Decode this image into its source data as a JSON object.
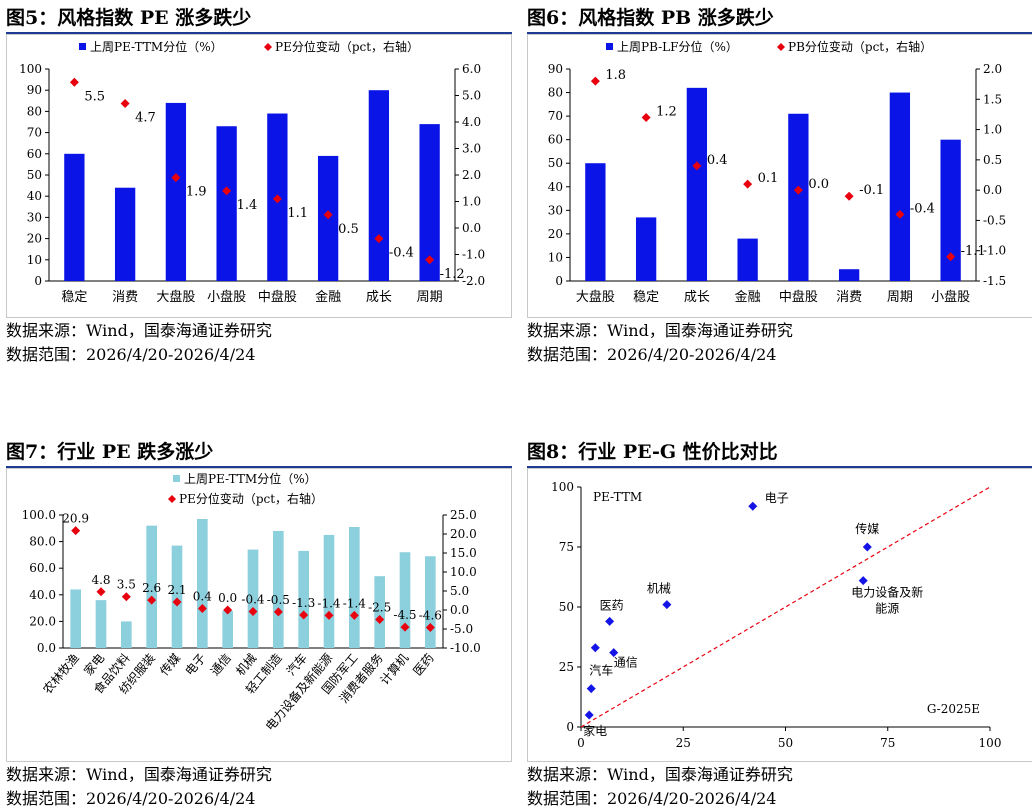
{
  "colors": {
    "bar_blue": "#0a14e6",
    "bar_light": "#8ccfdd",
    "marker_red": "#e8000f",
    "dashed_red": "#e8000f",
    "diamond_blue": "#1414e6"
  },
  "source_label": "数据来源：Wind，国泰海通证券研究",
  "range_label": "数据范围：2026/4/20-2026/4/24",
  "chart_data": [
    {
      "id": "fig5",
      "type": "bar",
      "title": "图5：风格指数 PE 涨多跌少",
      "categories": [
        "稳定",
        "消费",
        "大盘股",
        "小盘股",
        "中盘股",
        "金融",
        "成长",
        "周期"
      ],
      "series": [
        {
          "name": "上周PE-TTM分位（%）",
          "kind": "bar",
          "axis": "left",
          "values": [
            60,
            44,
            84,
            73,
            79,
            59,
            90,
            74
          ]
        },
        {
          "name": "PE分位变动（pct，右轴）",
          "kind": "marker",
          "axis": "right",
          "values": [
            5.5,
            4.7,
            1.9,
            1.4,
            1.1,
            0.5,
            -0.4,
            -1.2
          ],
          "labels": [
            "5.5",
            "4.7",
            "1.9",
            "1.4",
            "1.1",
            "0.5",
            "-0.4",
            "-1.2"
          ]
        }
      ],
      "ylim": [
        0,
        100
      ],
      "yticks": [
        "0",
        "10",
        "20",
        "30",
        "40",
        "50",
        "60",
        "70",
        "80",
        "90",
        "100"
      ],
      "y2lim": [
        -2,
        6
      ],
      "y2ticks": [
        "-2.0",
        "-1.0",
        "0.0",
        "1.0",
        "2.0",
        "3.0",
        "4.0",
        "5.0",
        "6.0"
      ],
      "legend": "top"
    },
    {
      "id": "fig6",
      "type": "bar",
      "title": "图6：风格指数 PB 涨多跌少",
      "categories": [
        "大盘股",
        "稳定",
        "成长",
        "金融",
        "中盘股",
        "消费",
        "周期",
        "小盘股"
      ],
      "series": [
        {
          "name": "上周PB-LF分位（%）",
          "kind": "bar",
          "axis": "left",
          "values": [
            50,
            27,
            82,
            18,
            71,
            5,
            80,
            60
          ]
        },
        {
          "name": "PB分位变动（pct，右轴）",
          "kind": "marker",
          "axis": "right",
          "values": [
            1.8,
            1.2,
            0.4,
            0.1,
            0.0,
            -0.1,
            -0.4,
            -1.1
          ],
          "labels": [
            "1.8",
            "1.2",
            "0.4",
            "0.1",
            "0.0",
            "-0.1",
            "-0.4",
            "-1.1"
          ]
        }
      ],
      "ylim": [
        0,
        90
      ],
      "yticks": [
        "0",
        "10",
        "20",
        "30",
        "40",
        "50",
        "60",
        "70",
        "80",
        "90"
      ],
      "y2lim": [
        -1.5,
        2
      ],
      "y2ticks": [
        "-1.5",
        "-1.0",
        "-0.5",
        "0.0",
        "0.5",
        "1.0",
        "1.5",
        "2.0"
      ],
      "legend": "top"
    },
    {
      "id": "fig7",
      "type": "bar",
      "title": "图7：行业 PE 跌多涨少",
      "categories": [
        "农林牧渔",
        "家电",
        "食品饮料",
        "纺织服装",
        "传媒",
        "电子",
        "通信",
        "机械",
        "轻工制造",
        "汽车",
        "电力设备及新能源",
        "国防军工",
        "消费者服务",
        "计算机",
        "医药"
      ],
      "series": [
        {
          "name": "上周PE-TTM分位（%）",
          "kind": "bar",
          "axis": "left",
          "values": [
            44,
            36,
            20,
            92,
            77,
            97,
            28,
            74,
            88,
            73,
            85,
            91,
            54,
            72,
            69
          ]
        },
        {
          "name": "PE分位变动（pct，右轴）",
          "kind": "marker",
          "axis": "right",
          "values": [
            20.9,
            4.8,
            3.5,
            2.6,
            2.1,
            0.4,
            0.0,
            -0.4,
            -0.5,
            -1.3,
            -1.4,
            -1.4,
            -2.5,
            -4.5,
            -4.6
          ],
          "labels": [
            "20.9",
            "4.8",
            "3.5",
            "2.6",
            "2.1",
            "0.4",
            "0.0",
            "-0.4",
            "-0.5",
            "-1.3",
            "-1.4",
            "-1.4",
            "-2.5",
            "-4.5",
            "-4.6"
          ]
        }
      ],
      "ylim": [
        0,
        100
      ],
      "yticks": [
        "0.0",
        "20.0",
        "40.0",
        "60.0",
        "80.0",
        "100.0"
      ],
      "y2lim": [
        -10,
        25
      ],
      "y2ticks": [
        "-10.0",
        "-5.0",
        "0.0",
        "5.0",
        "10.0",
        "15.0",
        "20.0",
        "25.0"
      ],
      "legend": "top"
    },
    {
      "id": "fig8",
      "type": "scatter",
      "title": "图8：行业 PE-G 性价比对比",
      "xlabel": "G-2025E",
      "ylabel": "PE-TTM",
      "xlim": [
        0,
        100
      ],
      "ylim": [
        0,
        100
      ],
      "xticks": [
        "0",
        "25",
        "50",
        "75",
        "100"
      ],
      "yticks": [
        "0",
        "25",
        "50",
        "75",
        "100"
      ],
      "points": [
        {
          "label": "电子",
          "x": 42,
          "y": 92
        },
        {
          "label": "传媒",
          "x": 70,
          "y": 75
        },
        {
          "label": "电力设备及新能源",
          "x": 69,
          "y": 61
        },
        {
          "label": "机械",
          "x": 21,
          "y": 51
        },
        {
          "label": "医药",
          "x": 7,
          "y": 44
        },
        {
          "label": "",
          "x": 3.5,
          "y": 33
        },
        {
          "label": "通信",
          "x": 8,
          "y": 31
        },
        {
          "label": "汽车",
          "x": 2.5,
          "y": 16
        },
        {
          "label": "家电",
          "x": 2,
          "y": 5
        }
      ],
      "reference_line": "y = x"
    }
  ]
}
